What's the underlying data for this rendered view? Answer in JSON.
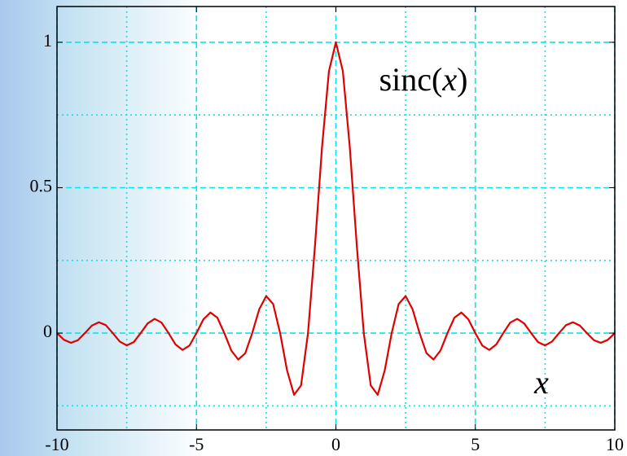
{
  "chart_data": {
    "type": "line",
    "curve_label": [
      "sinc(",
      "x",
      ")"
    ],
    "x_label": "x",
    "x": [
      -10,
      -9.75,
      -9.5,
      -9.25,
      -9,
      -8.75,
      -8.5,
      -8.25,
      -8,
      -7.75,
      -7.5,
      -7.25,
      -7,
      -6.75,
      -6.5,
      -6.25,
      -6,
      -5.75,
      -5.5,
      -5.25,
      -5,
      -4.75,
      -4.5,
      -4.25,
      -4,
      -3.75,
      -3.5,
      -3.25,
      -3,
      -2.75,
      -2.5,
      -2.25,
      -2,
      -1.75,
      -1.5,
      -1.25,
      -1,
      -0.75,
      -0.5,
      -0.25,
      0,
      0.25,
      0.5,
      0.75,
      1,
      1.25,
      1.5,
      1.75,
      2,
      2.25,
      2.5,
      2.75,
      3,
      3.25,
      3.5,
      3.75,
      4,
      4.25,
      4.5,
      4.75,
      5,
      5.25,
      5.5,
      5.75,
      6,
      6.25,
      6.5,
      6.75,
      7,
      7.25,
      7.5,
      7.75,
      8,
      8.25,
      8.5,
      8.75,
      9,
      9.25,
      9.5,
      9.75,
      10
    ],
    "values": [
      0,
      -0.0231,
      -0.0335,
      -0.0243,
      0,
      0.0257,
      0.0374,
      0.0273,
      0,
      -0.029,
      -0.0424,
      -0.031,
      0,
      0.0333,
      0.049,
      0.036,
      0,
      -0.0391,
      -0.0579,
      -0.0429,
      0,
      0.0474,
      0.0707,
      0.053,
      0,
      -0.06,
      -0.0909,
      -0.0693,
      0,
      0.0818,
      0.1273,
      0.1,
      0,
      -0.1286,
      -0.2122,
      -0.1801,
      0,
      0.3001,
      0.6366,
      0.9003,
      1,
      0.9003,
      0.6366,
      0.3001,
      0,
      -0.1801,
      -0.2122,
      -0.1286,
      0,
      0.1,
      0.1273,
      0.0818,
      0,
      -0.0693,
      -0.0909,
      -0.06,
      0,
      0.053,
      0.0707,
      0.0474,
      0,
      -0.0429,
      -0.0579,
      -0.0391,
      0,
      0.036,
      0.049,
      0.0333,
      0,
      -0.031,
      -0.0424,
      -0.029,
      0,
      0.0273,
      0.0374,
      0.0257,
      0,
      -0.0243,
      -0.0335,
      -0.0231,
      0
    ],
    "color": "#e00000",
    "grid_color": "#00e8f0",
    "xlim": [
      -10,
      10
    ],
    "xticks": [
      -10,
      -5,
      0,
      5,
      10
    ],
    "xminorticks": [
      -7.5,
      -2.5,
      2.5,
      7.5
    ],
    "ylim": [
      -0.333,
      1.123
    ],
    "yticks": [
      0,
      0.5,
      1
    ],
    "yminorticks": [
      -0.25,
      0.25,
      0.75
    ],
    "grid": true
  }
}
